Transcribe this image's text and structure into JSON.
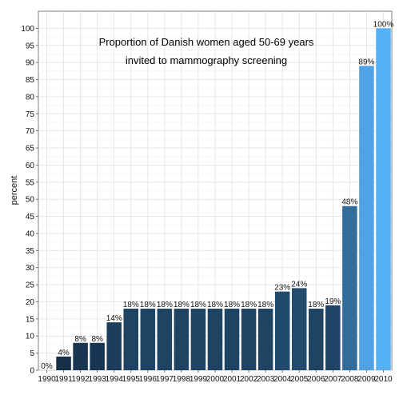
{
  "chart_data": {
    "type": "bar",
    "title": "Proportion of Danish women aged 50-69 years",
    "subtitle": "invited to mammography screening",
    "xlabel": "",
    "ylabel": "percent",
    "ylim": [
      0,
      105
    ],
    "yticks": [
      0,
      5,
      10,
      15,
      20,
      25,
      30,
      35,
      40,
      45,
      50,
      55,
      60,
      65,
      70,
      75,
      80,
      85,
      90,
      95,
      100
    ],
    "grid": true,
    "legend": "none",
    "color_low": "#132b43",
    "color_high": "#56b1f7",
    "categories": [
      "1990",
      "1991",
      "1992",
      "1993",
      "1994",
      "1995",
      "1996",
      "1997",
      "1998",
      "1999",
      "2000",
      "2001",
      "2002",
      "2003",
      "2004",
      "2005",
      "2006",
      "2007",
      "2008",
      "2009",
      "2010"
    ],
    "values": [
      0,
      4,
      8,
      8,
      14,
      18,
      18,
      18,
      18,
      18,
      18,
      18,
      18,
      18,
      23,
      24,
      18,
      19,
      48,
      89,
      100
    ],
    "labels": [
      "0%",
      "4%",
      "8%",
      "8%",
      "14%",
      "18%",
      "18%",
      "18%",
      "18%",
      "18%",
      "18%",
      "18%",
      "18%",
      "18%",
      "23%",
      "24%",
      "18%",
      "19%",
      "48%",
      "89%",
      "100%"
    ]
  }
}
